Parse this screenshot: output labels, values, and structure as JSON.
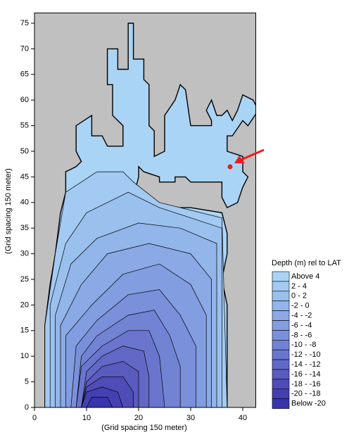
{
  "chart_data": {
    "type": "contour",
    "x_label": "(Grid spacing 150 meter)",
    "y_label": "(Grid spacing 150 meter)",
    "xlim": [
      0,
      42.5
    ],
    "ylim": [
      0,
      77
    ],
    "xticks": [
      0,
      10,
      20,
      30,
      40
    ],
    "yticks": [
      0,
      5,
      10,
      15,
      20,
      25,
      30,
      35,
      40,
      45,
      50,
      55,
      60,
      65,
      70,
      75
    ],
    "background": "#c0c0c0",
    "legend_title": "Depth (m) rel to LAT",
    "legend": [
      {
        "label": "Above 4",
        "color": "#aad4f6"
      },
      {
        "label": "2 - 4",
        "color": "#a2caf2"
      },
      {
        "label": "0 - 2",
        "color": "#9ac0ee"
      },
      {
        "label": "-2 - 0",
        "color": "#92b5ea"
      },
      {
        "label": "-4 - -2",
        "color": "#8aa9e5"
      },
      {
        "label": "-6 - -4",
        "color": "#829de0"
      },
      {
        "label": "-8 - -6",
        "color": "#7a90da"
      },
      {
        "label": "-10 - -8",
        "color": "#7283d4"
      },
      {
        "label": "-12 - -10",
        "color": "#6a76cd"
      },
      {
        "label": "-14 - -12",
        "color": "#6268c6"
      },
      {
        "label": "-16 - -14",
        "color": "#5a5abf"
      },
      {
        "label": "-18 - -16",
        "color": "#4f4cb8"
      },
      {
        "label": "-20 - -18",
        "color": "#4440b2"
      },
      {
        "label": "Below -20",
        "color": "#3834ad"
      }
    ],
    "regions": [
      {
        "level": 0,
        "points": [
          [
            2,
            0
          ],
          [
            2,
            16
          ],
          [
            3,
            24
          ],
          [
            4,
            30
          ],
          [
            5,
            38
          ],
          [
            6,
            42
          ],
          [
            6,
            46
          ],
          [
            8,
            47
          ],
          [
            9,
            48
          ],
          [
            8,
            50
          ],
          [
            8,
            55
          ],
          [
            11,
            57
          ],
          [
            11,
            53
          ],
          [
            13,
            53
          ],
          [
            14,
            51
          ],
          [
            17,
            51
          ],
          [
            17,
            55
          ],
          [
            15,
            57
          ],
          [
            15,
            63
          ],
          [
            14,
            63
          ],
          [
            14,
            70
          ],
          [
            16,
            70
          ],
          [
            16,
            66
          ],
          [
            18,
            66
          ],
          [
            18,
            75
          ],
          [
            19,
            75
          ],
          [
            19,
            68
          ],
          [
            21,
            68
          ],
          [
            21,
            64
          ],
          [
            22,
            63
          ],
          [
            22,
            55
          ],
          [
            23,
            54
          ],
          [
            23,
            49
          ],
          [
            25,
            50
          ],
          [
            25,
            57
          ],
          [
            27,
            60
          ],
          [
            28,
            63
          ],
          [
            29,
            62
          ],
          [
            30,
            55
          ],
          [
            34,
            55
          ],
          [
            34,
            56
          ],
          [
            33,
            58
          ],
          [
            34,
            60
          ],
          [
            35,
            57
          ],
          [
            36,
            57
          ],
          [
            37,
            58
          ],
          [
            38,
            56
          ],
          [
            39,
            58
          ],
          [
            40,
            61
          ],
          [
            42,
            60
          ],
          [
            43,
            58
          ],
          [
            41,
            55
          ],
          [
            40,
            56
          ],
          [
            38,
            53
          ],
          [
            37,
            53
          ],
          [
            37,
            50
          ],
          [
            40,
            49
          ],
          [
            40,
            46
          ],
          [
            41,
            45
          ],
          [
            40,
            43
          ],
          [
            39,
            40
          ],
          [
            37,
            39
          ],
          [
            36,
            41
          ],
          [
            36,
            44
          ],
          [
            33,
            44
          ],
          [
            30,
            44
          ],
          [
            29,
            45
          ],
          [
            27,
            45
          ],
          [
            27,
            44
          ],
          [
            24,
            44
          ],
          [
            24,
            45
          ],
          [
            21,
            46
          ],
          [
            20,
            47
          ],
          [
            20,
            45
          ],
          [
            19,
            41
          ],
          [
            22,
            40
          ],
          [
            26,
            39
          ],
          [
            30,
            39
          ],
          [
            36,
            38
          ],
          [
            37,
            34
          ],
          [
            37,
            30
          ],
          [
            36,
            25
          ],
          [
            37,
            20
          ],
          [
            37,
            0
          ]
        ]
      },
      {
        "level": 1,
        "points": [
          [
            2,
            0
          ],
          [
            2,
            16
          ],
          [
            4,
            30
          ],
          [
            6,
            42
          ],
          [
            12,
            46
          ],
          [
            17,
            46
          ],
          [
            19,
            44
          ],
          [
            24,
            40
          ],
          [
            36,
            37
          ],
          [
            37,
            0
          ]
        ]
      },
      {
        "level": 2,
        "points": [
          [
            3,
            0
          ],
          [
            3,
            20
          ],
          [
            6,
            32
          ],
          [
            10,
            38
          ],
          [
            18,
            42
          ],
          [
            24,
            39
          ],
          [
            30,
            37
          ],
          [
            36,
            35
          ],
          [
            36,
            0
          ]
        ]
      },
      {
        "level": 3,
        "points": [
          [
            4,
            0
          ],
          [
            4,
            18
          ],
          [
            7,
            28
          ],
          [
            12,
            33
          ],
          [
            20,
            36
          ],
          [
            28,
            35
          ],
          [
            35,
            32
          ],
          [
            35,
            0
          ]
        ]
      },
      {
        "level": 4,
        "points": [
          [
            5,
            0
          ],
          [
            5,
            16
          ],
          [
            9,
            24
          ],
          [
            14,
            30
          ],
          [
            22,
            32
          ],
          [
            30,
            30
          ],
          [
            34,
            25
          ],
          [
            34,
            0
          ]
        ]
      },
      {
        "level": 5,
        "points": [
          [
            6,
            0
          ],
          [
            6,
            14
          ],
          [
            11,
            20
          ],
          [
            17,
            26
          ],
          [
            24,
            28
          ],
          [
            30,
            24
          ],
          [
            33,
            18
          ],
          [
            33,
            0
          ]
        ]
      },
      {
        "level": 6,
        "points": [
          [
            7,
            0
          ],
          [
            8,
            12
          ],
          [
            12,
            17
          ],
          [
            18,
            22
          ],
          [
            24,
            23
          ],
          [
            28,
            18
          ],
          [
            31,
            12
          ],
          [
            31,
            0
          ]
        ]
      },
      {
        "level": 7,
        "points": [
          [
            8,
            0
          ],
          [
            9,
            10
          ],
          [
            12,
            14
          ],
          [
            18,
            18
          ],
          [
            23,
            19
          ],
          [
            26,
            14
          ],
          [
            28,
            8
          ],
          [
            28,
            0
          ]
        ]
      },
      {
        "level": 8,
        "points": [
          [
            8,
            0
          ],
          [
            9,
            8
          ],
          [
            13,
            12
          ],
          [
            18,
            15
          ],
          [
            22,
            15
          ],
          [
            24,
            10
          ],
          [
            25,
            0
          ]
        ]
      },
      {
        "level": 9,
        "points": [
          [
            9,
            0
          ],
          [
            10,
            7
          ],
          [
            13,
            10
          ],
          [
            17,
            12
          ],
          [
            21,
            11
          ],
          [
            22,
            6
          ],
          [
            22,
            0
          ]
        ]
      },
      {
        "level": 10,
        "points": [
          [
            9,
            0
          ],
          [
            10,
            5
          ],
          [
            13,
            8
          ],
          [
            17,
            9
          ],
          [
            20,
            7
          ],
          [
            20,
            0
          ]
        ]
      },
      {
        "level": 11,
        "points": [
          [
            9,
            0
          ],
          [
            10,
            4
          ],
          [
            13,
            6
          ],
          [
            17,
            6
          ],
          [
            19,
            3
          ],
          [
            19,
            0
          ]
        ]
      },
      {
        "level": 12,
        "points": [
          [
            9,
            0
          ],
          [
            10,
            3
          ],
          [
            13,
            4
          ],
          [
            16,
            3
          ],
          [
            17,
            0
          ]
        ]
      },
      {
        "level": 13,
        "points": [
          [
            10,
            0
          ],
          [
            11,
            2
          ],
          [
            14,
            2
          ],
          [
            15,
            0
          ]
        ]
      }
    ]
  }
}
